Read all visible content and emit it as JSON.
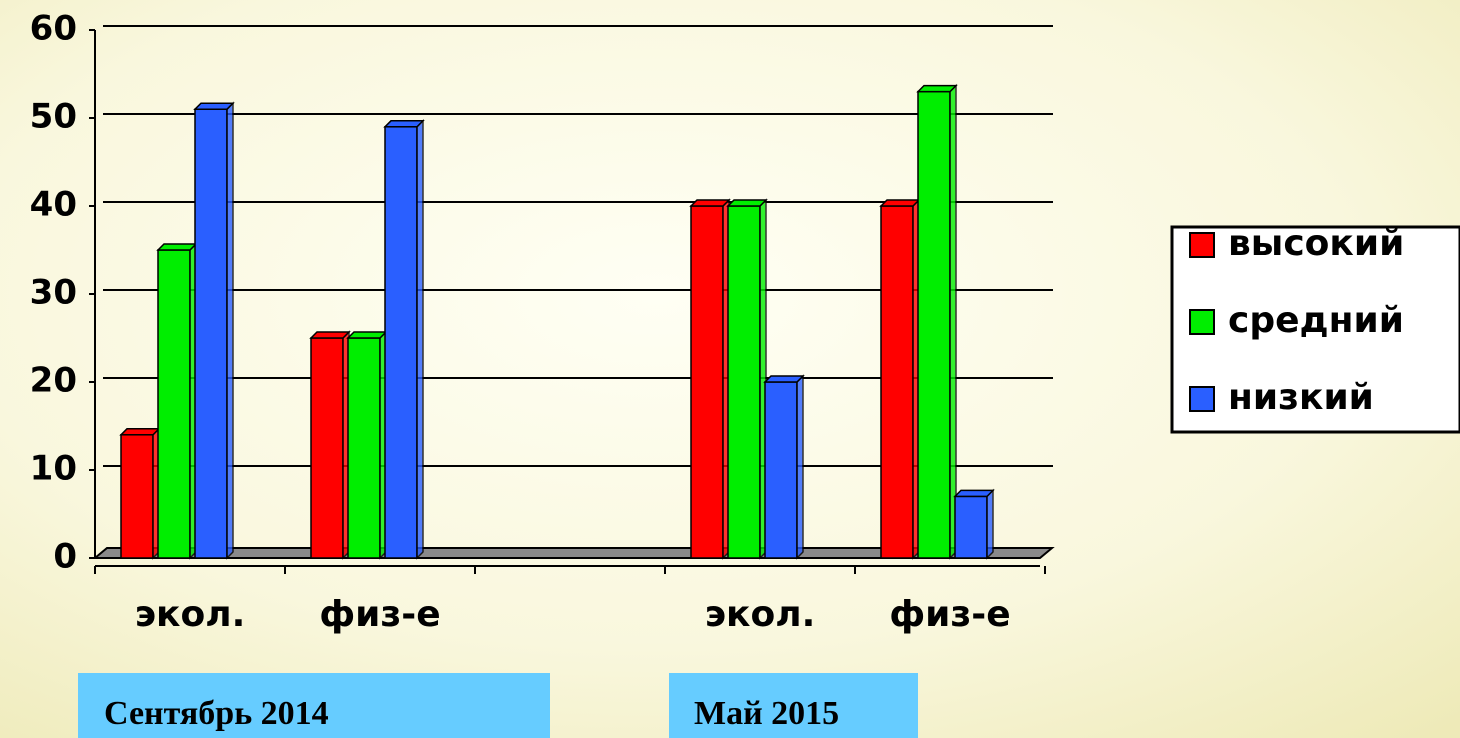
{
  "chart_data": {
    "type": "bar",
    "categories": [
      "экол.",
      "физ-е",
      null,
      "экол.",
      "физ-е"
    ],
    "series": [
      {
        "name": "высокий",
        "color": "#ff0000",
        "values": [
          14,
          25,
          null,
          40,
          40
        ]
      },
      {
        "name": "средний",
        "color": "#00ee00",
        "values": [
          35,
          25,
          null,
          40,
          53
        ]
      },
      {
        "name": "низкий",
        "color": "#2a5fff",
        "values": [
          51,
          49,
          null,
          20,
          7
        ]
      }
    ],
    "ylim": [
      0,
      60
    ],
    "yticks": [
      0,
      10,
      20,
      30,
      40,
      50,
      60
    ],
    "grid": true,
    "annotations": [
      "Сентябрь 2014",
      "Май 2015"
    ]
  }
}
